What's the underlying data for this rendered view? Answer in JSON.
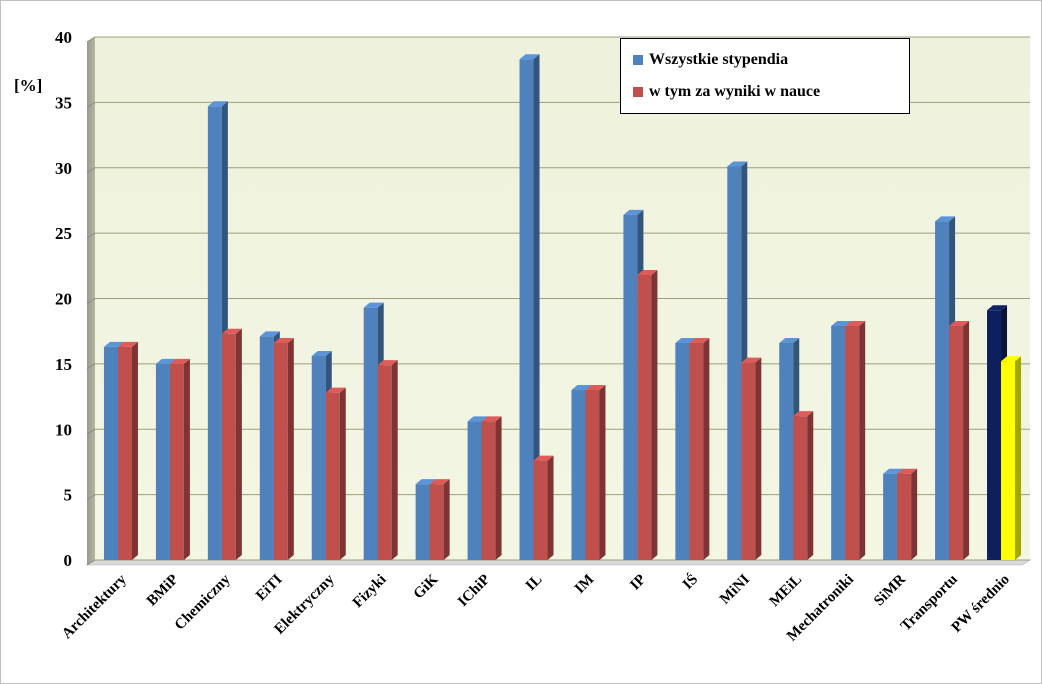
{
  "chart_data": {
    "type": "bar",
    "ylabel": "[%]",
    "ylim": [
      0,
      40
    ],
    "yticks": [
      "0",
      "5",
      "10",
      "15",
      "20",
      "25",
      "30",
      "35",
      "40"
    ],
    "grid": true,
    "legend_position": "top-right",
    "categories": [
      "Architektury",
      "BMiP",
      "Chemiczny",
      "EiTI",
      "Elektryczny",
      "Fizyki",
      "GiK",
      "IChiP",
      "IL",
      "IM",
      "IP",
      "IŚ",
      "MiNI",
      "MEiL",
      "Mechatroniki",
      "SiMR",
      "Transportu",
      "PW średnio"
    ],
    "series": [
      {
        "name": "Wszystkie stypendia",
        "color": "#4f81bd",
        "highlight_last_color": "#0d1f5c",
        "values": [
          16.3,
          15.0,
          34.7,
          17.1,
          15.6,
          19.3,
          5.8,
          10.6,
          38.3,
          13.0,
          26.4,
          16.6,
          30.1,
          16.6,
          17.9,
          6.6,
          25.9,
          19.1
        ]
      },
      {
        "name": "w tym za wyniki w nauce",
        "color": "#c0504d",
        "highlight_last_color": "#ffff00",
        "values": [
          16.3,
          15.0,
          17.3,
          16.6,
          12.8,
          14.9,
          5.8,
          10.6,
          7.6,
          13.0,
          21.8,
          16.6,
          15.1,
          11.0,
          17.9,
          6.6,
          17.9,
          15.2
        ]
      }
    ]
  }
}
